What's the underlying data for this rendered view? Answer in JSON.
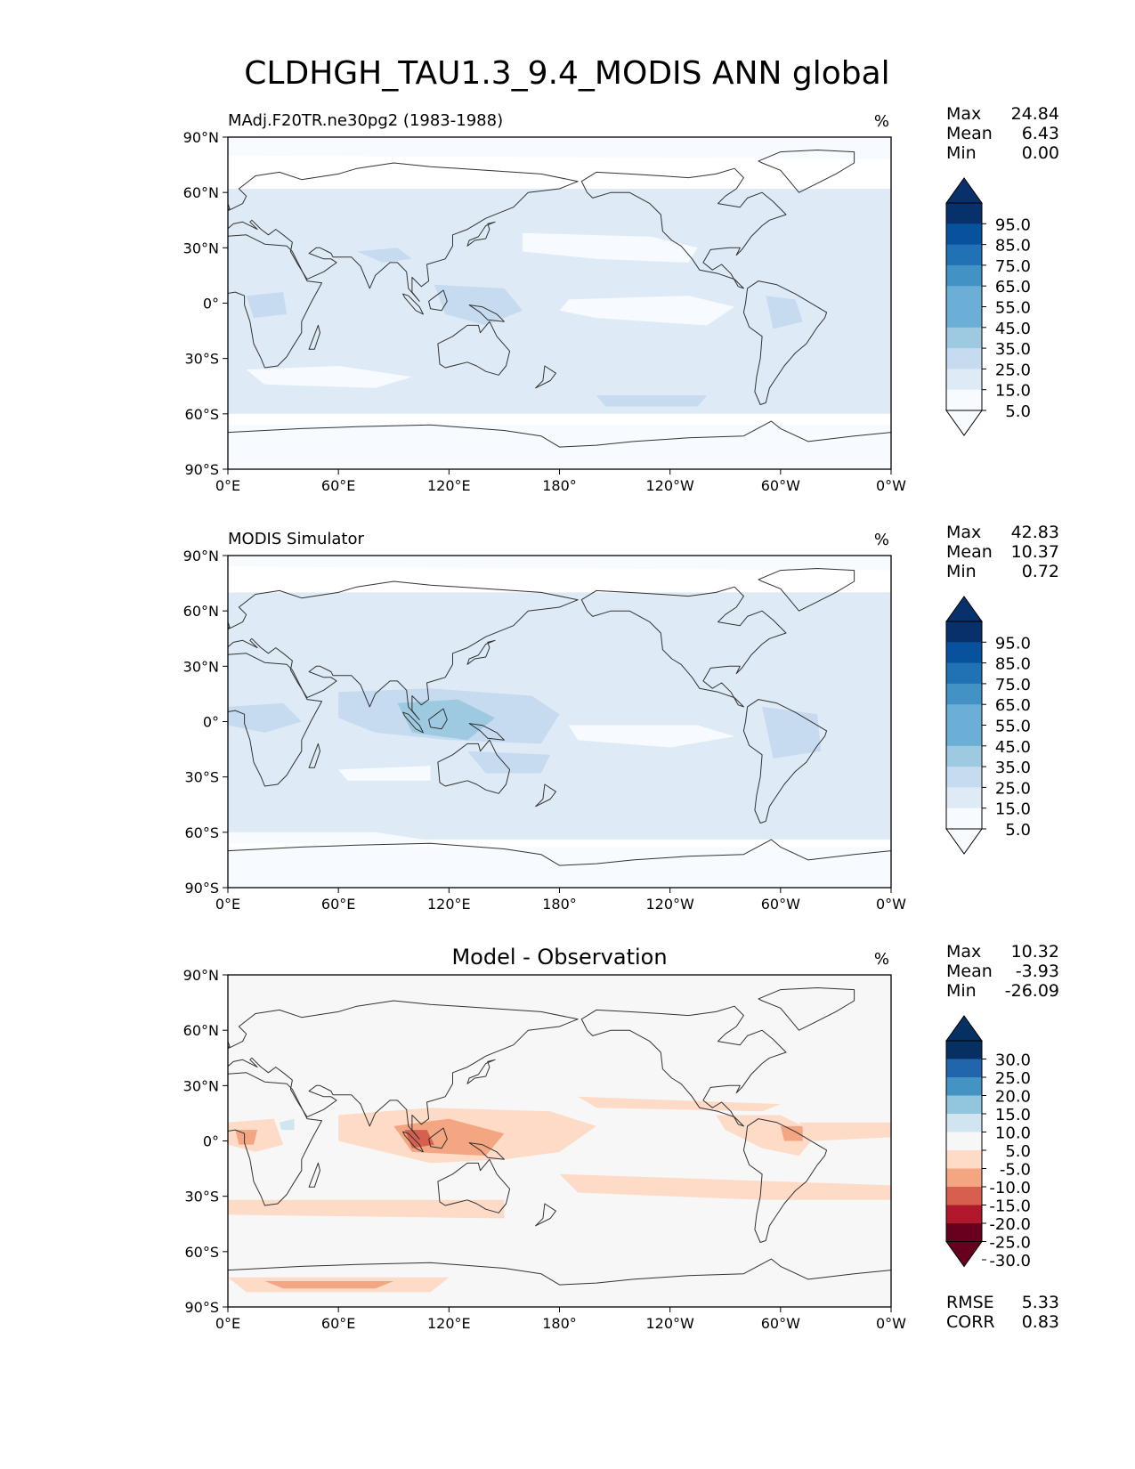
{
  "title": "CLDHGH_TAU1.3_9.4_MODIS ANN global",
  "colors": {
    "blues": [
      "#f7fbff",
      "#deebf7",
      "#c6dbef",
      "#9ecae1",
      "#6baed6",
      "#4292c6",
      "#2171b5",
      "#08519c",
      "#08306b"
    ],
    "div_neg": [
      "#fddbc7",
      "#f4a582",
      "#d6604d",
      "#b2182b",
      "#67001f"
    ],
    "div_pos": [
      "#d1e5f0",
      "#92c5de",
      "#4393c3",
      "#2166ac",
      "#053061"
    ],
    "div_neutral": "#f7f7f7",
    "land_line": "#333333"
  },
  "chart_data": [
    {
      "type": "heatmap",
      "title": "",
      "left_title": "MAdj.F20TR.ne30pg2 (1983-1988)",
      "units": "%",
      "lat_ticks": [
        "90°N",
        "60°N",
        "30°N",
        "0°",
        "30°S",
        "60°S",
        "90°S"
      ],
      "lon_ticks": [
        "0°E",
        "60°E",
        "120°E",
        "180°",
        "120°W",
        "60°W",
        "0°W"
      ],
      "stats": [
        {
          "label": "Max",
          "value": "24.84"
        },
        {
          "label": "Mean",
          "value": "6.43"
        },
        {
          "label": "Min",
          "value": "0.00"
        }
      ],
      "colorbar_labels": [
        "95.0",
        "85.0",
        "75.0",
        "65.0",
        "55.0",
        "45.0",
        "35.0",
        "25.0",
        "15.0",
        "5.0"
      ],
      "colorbar_type": "sequential",
      "footer": []
    },
    {
      "type": "heatmap",
      "title": "",
      "left_title": "MODIS Simulator",
      "units": "%",
      "lat_ticks": [
        "90°N",
        "60°N",
        "30°N",
        "0°",
        "30°S",
        "60°S",
        "90°S"
      ],
      "lon_ticks": [
        "0°E",
        "60°E",
        "120°E",
        "180°",
        "120°W",
        "60°W",
        "0°W"
      ],
      "stats": [
        {
          "label": "Max",
          "value": "42.83"
        },
        {
          "label": "Mean",
          "value": "10.37"
        },
        {
          "label": "Min",
          "value": "0.72"
        }
      ],
      "colorbar_labels": [
        "95.0",
        "85.0",
        "75.0",
        "65.0",
        "55.0",
        "45.0",
        "35.0",
        "25.0",
        "15.0",
        "5.0"
      ],
      "colorbar_type": "sequential",
      "footer": []
    },
    {
      "type": "heatmap",
      "title": "Model - Observation",
      "left_title": "",
      "units": "%",
      "lat_ticks": [
        "90°N",
        "60°N",
        "30°N",
        "0°",
        "30°S",
        "60°S",
        "90°S"
      ],
      "lon_ticks": [
        "0°E",
        "60°E",
        "120°E",
        "180°",
        "120°W",
        "60°W",
        "0°W"
      ],
      "stats": [
        {
          "label": "Max",
          "value": "10.32"
        },
        {
          "label": "Mean",
          "value": "-3.93"
        },
        {
          "label": "Min",
          "value": "-26.09"
        }
      ],
      "colorbar_labels": [
        "30.0",
        "25.0",
        "20.0",
        "15.0",
        "10.0",
        "5.0",
        "-5.0",
        "-10.0",
        "-15.0",
        "-20.0",
        "-25.0",
        "-30.0"
      ],
      "colorbar_type": "diverging",
      "footer": [
        {
          "label": "RMSE",
          "value": "5.33"
        },
        {
          "label": "CORR",
          "value": "0.83"
        }
      ]
    }
  ]
}
